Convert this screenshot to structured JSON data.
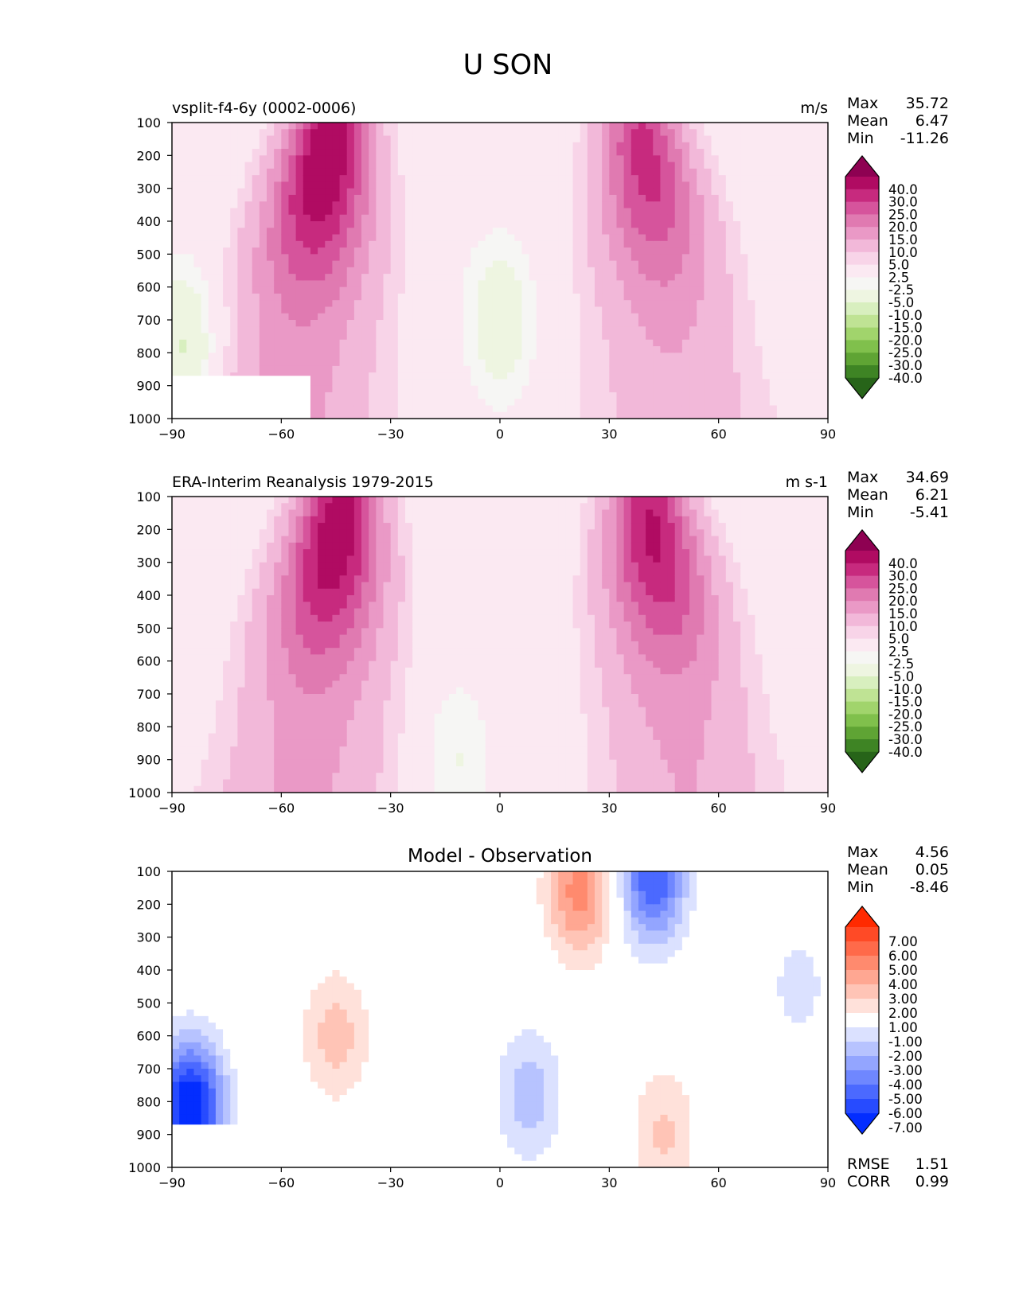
{
  "figure": {
    "title": "U SON"
  },
  "chart_data": [
    {
      "type": "heatmap",
      "subtype": "filled-contour",
      "title_left": "vsplit-f4-6y (0002-0006)",
      "title_right": "m/s",
      "xlim": [
        -90,
        90
      ],
      "ylim": [
        1000,
        100
      ],
      "xticks": [
        "−90",
        "−60",
        "−30",
        "0",
        "30",
        "60",
        "90"
      ],
      "yticks": [
        "100",
        "200",
        "300",
        "400",
        "500",
        "600",
        "700",
        "800",
        "900",
        "1000"
      ],
      "stats": [
        {
          "label": "Max",
          "value": "35.72"
        },
        {
          "label": "Mean",
          "value": "6.47"
        },
        {
          "label": "Min",
          "value": "-11.26"
        }
      ],
      "colorbar": {
        "labels": [
          "40.0",
          "30.0",
          "25.0",
          "20.0",
          "15.0",
          "10.0",
          "5.0",
          "2.5",
          "-2.5",
          "-5.0",
          "-10.0",
          "-15.0",
          "-20.0",
          "-25.0",
          "-30.0",
          "-40.0"
        ],
        "colors": [
          "#8e0152",
          "#b00b62",
          "#c72a7e",
          "#d6549c",
          "#e07ab1",
          "#ea99c6",
          "#f2b8d9",
          "#f8d4e8",
          "#fbe9f2",
          "#f6f6f4",
          "#eef5e1",
          "#d8efbf",
          "#bfe394",
          "#a1d46c",
          "#80c04c",
          "#5fa434",
          "#3e8424",
          "#276419"
        ]
      },
      "features": [
        {
          "kind": "jet",
          "lat": -48,
          "plev": 220,
          "peak": 35.72
        },
        {
          "kind": "jet",
          "lat": 40,
          "plev": 220,
          "peak": 27
        },
        {
          "kind": "easterlies",
          "lat": 0,
          "plev": 700,
          "peak": -8
        },
        {
          "kind": "easterlies",
          "lat": -87,
          "plev": 800,
          "peak": -11.26
        }
      ],
      "terrain": {
        "lat_range": [
          -90,
          -52
        ],
        "plev_range": [
          870,
          1000
        ]
      }
    },
    {
      "type": "heatmap",
      "subtype": "filled-contour",
      "title_left": "ERA-Interim Reanalysis 1979-2015",
      "title_right": "m s-1",
      "xlim": [
        -90,
        90
      ],
      "ylim": [
        1000,
        100
      ],
      "xticks": [
        "−90",
        "−60",
        "−30",
        "0",
        "30",
        "60",
        "90"
      ],
      "yticks": [
        "100",
        "200",
        "300",
        "400",
        "500",
        "600",
        "700",
        "800",
        "900",
        "1000"
      ],
      "stats": [
        {
          "label": "Max",
          "value": "34.69"
        },
        {
          "label": "Mean",
          "value": "6.21"
        },
        {
          "label": "Min",
          "value": "-5.41"
        }
      ],
      "colorbar": {
        "labels": [
          "40.0",
          "30.0",
          "25.0",
          "20.0",
          "15.0",
          "10.0",
          "5.0",
          "2.5",
          "-2.5",
          "-5.0",
          "-10.0",
          "-15.0",
          "-20.0",
          "-25.0",
          "-30.0",
          "-40.0"
        ],
        "colors": [
          "#8e0152",
          "#b00b62",
          "#c72a7e",
          "#d6549c",
          "#e07ab1",
          "#ea99c6",
          "#f2b8d9",
          "#f8d4e8",
          "#fbe9f2",
          "#f6f6f4",
          "#eef5e1",
          "#d8efbf",
          "#bfe394",
          "#a1d46c",
          "#80c04c",
          "#5fa434",
          "#3e8424",
          "#276419"
        ]
      },
      "features": [
        {
          "kind": "jet",
          "lat": -45,
          "plev": 220,
          "peak": 34.69
        },
        {
          "kind": "jet",
          "lat": 42,
          "plev": 220,
          "peak": 31
        },
        {
          "kind": "easterlies",
          "lat": -12,
          "plev": 900,
          "peak": -5.41
        }
      ],
      "terrain": null
    },
    {
      "type": "heatmap",
      "subtype": "filled-contour",
      "title_center": "Model - Observation",
      "xlim": [
        -90,
        90
      ],
      "ylim": [
        1000,
        100
      ],
      "xticks": [
        "−90",
        "−60",
        "−30",
        "0",
        "30",
        "60",
        "90"
      ],
      "yticks": [
        "100",
        "200",
        "300",
        "400",
        "500",
        "600",
        "700",
        "800",
        "900",
        "1000"
      ],
      "stats": [
        {
          "label": "Max",
          "value": "4.56"
        },
        {
          "label": "Mean",
          "value": "0.05"
        },
        {
          "label": "Min",
          "value": "-8.46"
        }
      ],
      "stats_bottom": [
        {
          "label": "RMSE",
          "value": "1.51"
        },
        {
          "label": "CORR",
          "value": "0.99"
        }
      ],
      "colorbar": {
        "labels": [
          "7.00",
          "6.00",
          "5.00",
          "4.00",
          "3.00",
          "2.00",
          "1.00",
          "-1.00",
          "-2.00",
          "-3.00",
          "-4.00",
          "-5.00",
          "-6.00",
          "-7.00"
        ],
        "colors": [
          "#ff2a00",
          "#ff4a26",
          "#ff6a4a",
          "#ff8a6e",
          "#ffa792",
          "#ffc4b6",
          "#ffe1da",
          "#ffffff",
          "#dbe1ff",
          "#b7c3ff",
          "#93a5ff",
          "#6f87ff",
          "#4b69ff",
          "#274bff",
          "#032dff"
        ]
      },
      "features": [
        {
          "kind": "positive",
          "lat": -45,
          "plev": 600,
          "peak": 2.5
        },
        {
          "kind": "positive",
          "lat": 22,
          "plev": 160,
          "peak": 4.56
        },
        {
          "kind": "positive",
          "lat": 45,
          "plev": 900,
          "peak": 2.2
        },
        {
          "kind": "negative",
          "lat": 42,
          "plev": 120,
          "peak": -6
        },
        {
          "kind": "negative",
          "lat": 8,
          "plev": 780,
          "peak": -2.6
        },
        {
          "kind": "negative",
          "lat": -85,
          "plev": 820,
          "peak": -8.46
        },
        {
          "kind": "negative",
          "lat": 82,
          "plev": 450,
          "peak": -1.4
        }
      ],
      "terrain": {
        "lat_range": [
          -90,
          -52
        ],
        "plev_range": [
          870,
          1000
        ]
      }
    }
  ]
}
